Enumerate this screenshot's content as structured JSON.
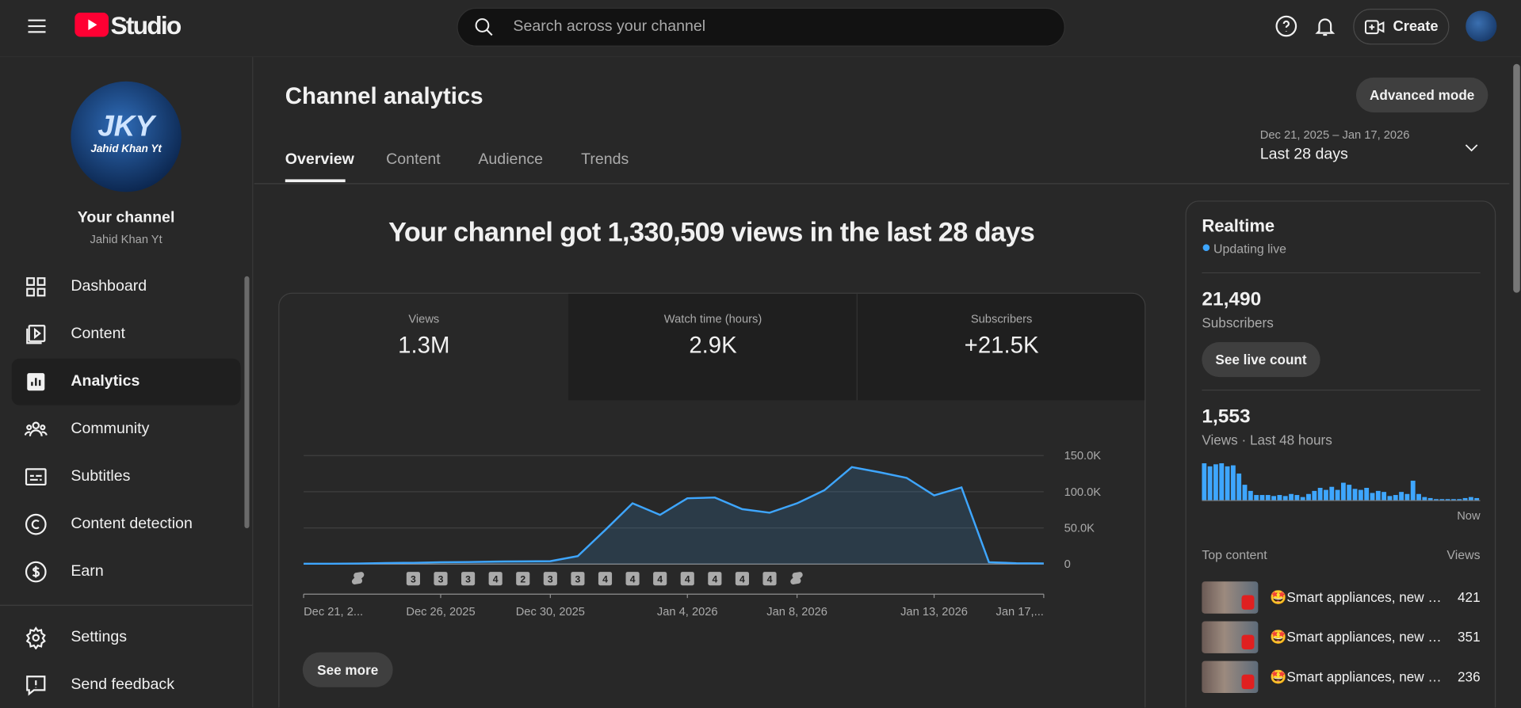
{
  "header": {
    "logo": "Studio",
    "search_placeholder": "Search across your channel",
    "create": "Create"
  },
  "sidebar": {
    "avatar_initials": "JKY",
    "avatar_caption": "Jahid Khan Yt",
    "channel_label": "Your channel",
    "channel_name": "Jahid Khan Yt",
    "nav": [
      "Dashboard",
      "Content",
      "Analytics",
      "Community",
      "Subtitles",
      "Content detection",
      "Earn"
    ],
    "footer_nav": [
      "Settings",
      "Send feedback"
    ]
  },
  "page": {
    "title": "Channel analytics",
    "tabs": [
      "Overview",
      "Content",
      "Audience",
      "Trends"
    ],
    "advanced_mode": "Advanced mode",
    "date_range": "Dec 21, 2025 – Jan 17, 2026",
    "period": "Last 28 days",
    "headline": "Your channel got 1,330,509 views in the last 28 days",
    "metrics": [
      {
        "label": "Views",
        "value": "1.3M"
      },
      {
        "label": "Watch time (hours)",
        "value": "2.9K"
      },
      {
        "label": "Subscribers",
        "value": "+21.5K"
      }
    ],
    "see_more": "See more"
  },
  "chart": {
    "type": "area",
    "categories": [
      "Dec 21, 2...",
      null,
      null,
      null,
      null,
      "Dec 26, 2025",
      null,
      null,
      null,
      "Dec 30, 2025",
      null,
      null,
      null,
      null,
      "Jan 4, 2026",
      null,
      null,
      null,
      "Jan 8, 2026",
      null,
      null,
      null,
      null,
      "Jan 13, 2026",
      null,
      null,
      null,
      "Jan 17,..."
    ],
    "values": [
      500,
      600,
      800,
      1500,
      1800,
      2500,
      2800,
      3500,
      3800,
      4000,
      11000,
      47000,
      84000,
      68000,
      91000,
      92000,
      76000,
      71000,
      84000,
      102000,
      134000,
      127000,
      119000,
      95000,
      106000,
      2500,
      1200,
      1000
    ],
    "color": "#3ea6ff",
    "ylim": [
      0,
      150000
    ],
    "yticks": [
      0,
      {
        "value": 50000,
        "label": "50.0K"
      },
      {
        "value": 100000,
        "label": "100.0K"
      },
      {
        "value": 150000,
        "label": "150.0K"
      }
    ],
    "uploads": [
      null,
      null,
      null,
      null,
      3,
      3,
      3,
      4,
      2,
      3,
      3,
      4,
      4,
      4,
      4,
      4,
      4,
      4,
      null,
      null,
      null,
      null,
      null,
      null,
      null,
      null,
      null,
      null
    ]
  },
  "realtime": {
    "title": "Realtime",
    "status": "Updating live",
    "subscribers": "21,490",
    "subscribers_label": "Subscribers",
    "see_live_count": "See live count",
    "views": "1,553",
    "views_label": "Views · Last 48 hours",
    "bars": {
      "type": "bar",
      "color": "#3ea6ff",
      "values": [
        36,
        33,
        35,
        36,
        33,
        34,
        26,
        15,
        9,
        5,
        5,
        5,
        4,
        5,
        4,
        6,
        5,
        3,
        6,
        9,
        12,
        10,
        13,
        10,
        17,
        15,
        11,
        10,
        12,
        7,
        9,
        8,
        4,
        5,
        8,
        6,
        19,
        6,
        3,
        2,
        1,
        1,
        1,
        1,
        1,
        2,
        3,
        2
      ]
    },
    "now": "Now",
    "top_content": "Top content",
    "views_header": "Views",
    "items": [
      {
        "title": "🤩Smart appliances, new …",
        "views": 421
      },
      {
        "title": "🤩Smart appliances, new …",
        "views": 351
      },
      {
        "title": "🤩Smart appliances, new …",
        "views": 236
      }
    ]
  }
}
